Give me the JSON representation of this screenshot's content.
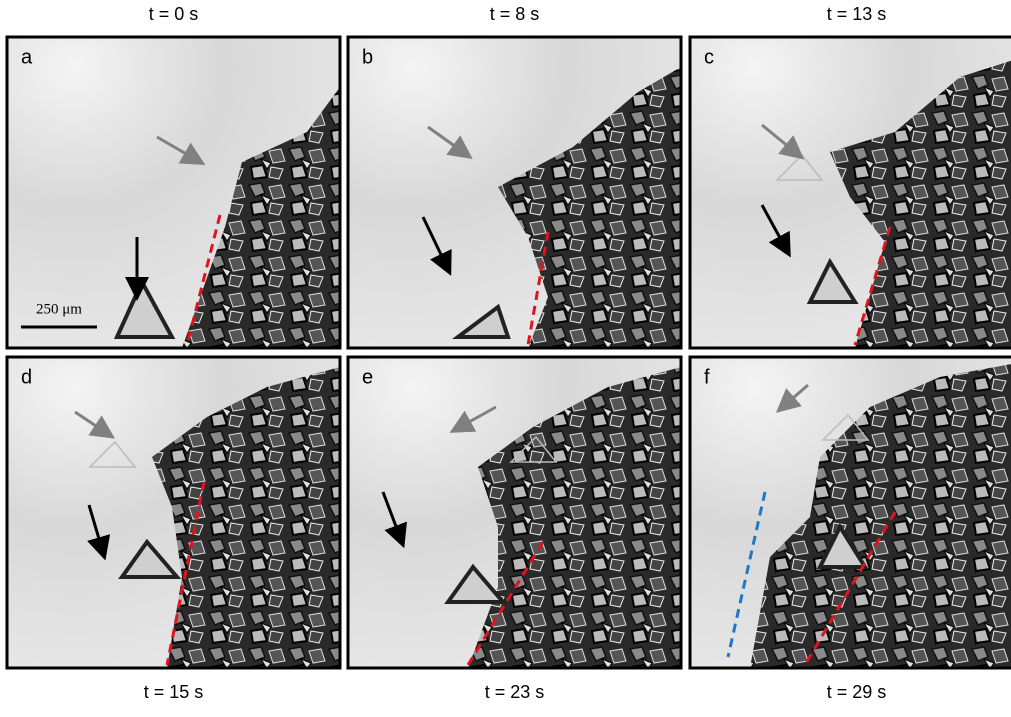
{
  "panels": [
    {
      "label": "a",
      "time": "t = 0 s"
    },
    {
      "label": "b",
      "time": "t = 8 s"
    },
    {
      "label": "c",
      "time": "t = 13 s"
    },
    {
      "label": "d",
      "time": "t = 15 s"
    },
    {
      "label": "e",
      "time": "t = 23 s"
    },
    {
      "label": "f",
      "time": "t = 29 s"
    }
  ],
  "scale_bar": "250 μm"
}
